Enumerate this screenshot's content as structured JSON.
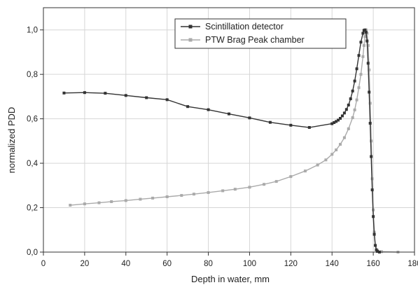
{
  "chart_data": {
    "type": "line",
    "xlabel": "Depth in water, mm",
    "ylabel": "normalized PDD",
    "xlim": [
      0,
      180
    ],
    "ylim": [
      0,
      1.1
    ],
    "x_ticks": [
      0,
      20,
      40,
      60,
      80,
      100,
      120,
      140,
      160,
      180
    ],
    "x_tick_labels": [
      "0",
      "20",
      "40",
      "60",
      "80",
      "100",
      "120",
      "140",
      "160",
      "180"
    ],
    "y_ticks": [
      0,
      0.2,
      0.4,
      0.6,
      0.8,
      1.0
    ],
    "y_tick_labels": [
      "0,0",
      "0,2",
      "0,4",
      "0,6",
      "0,8",
      "1,0"
    ],
    "grid": true,
    "legend_position": "top-center",
    "series": [
      {
        "name": "Scintillation detector",
        "color": "#333333",
        "marker": "square",
        "x": [
          10,
          20,
          30,
          40,
          50,
          60,
          70,
          80,
          90,
          100,
          110,
          120,
          129,
          140,
          141,
          142,
          143,
          144,
          145,
          146,
          147,
          148,
          149,
          150,
          151,
          152,
          153,
          154,
          155,
          155.5,
          156,
          156.5,
          157,
          157.5,
          158,
          158.5,
          159,
          159.5,
          160,
          160.5,
          161,
          161.5,
          162,
          163
        ],
        "y": [
          0.716,
          0.718,
          0.715,
          0.705,
          0.695,
          0.686,
          0.655,
          0.641,
          0.622,
          0.604,
          0.584,
          0.571,
          0.561,
          0.578,
          0.583,
          0.588,
          0.594,
          0.602,
          0.613,
          0.626,
          0.642,
          0.662,
          0.69,
          0.725,
          0.77,
          0.825,
          0.885,
          0.945,
          0.985,
          0.998,
          1.0,
          0.99,
          0.95,
          0.85,
          0.72,
          0.58,
          0.43,
          0.28,
          0.16,
          0.08,
          0.03,
          0.01,
          0.003,
          0.0
        ]
      },
      {
        "name": "PTW Brag Peak chamber",
        "color": "#aaaaaa",
        "marker": "square",
        "x": [
          13,
          20,
          27,
          33,
          40,
          47,
          53,
          60,
          67,
          73,
          80,
          87,
          93,
          100,
          107,
          113,
          120,
          127,
          133,
          137,
          140,
          142,
          144,
          146,
          148,
          150,
          151,
          152,
          153,
          154,
          155,
          155.5,
          156,
          156.5,
          157,
          157.5,
          158,
          158.5,
          159,
          159.5,
          160,
          160.5,
          161,
          162,
          164,
          172
        ],
        "y": [
          0.211,
          0.217,
          0.222,
          0.227,
          0.232,
          0.238,
          0.243,
          0.249,
          0.255,
          0.261,
          0.268,
          0.276,
          0.283,
          0.292,
          0.305,
          0.318,
          0.34,
          0.365,
          0.392,
          0.415,
          0.44,
          0.46,
          0.485,
          0.515,
          0.555,
          0.605,
          0.64,
          0.685,
          0.74,
          0.8,
          0.88,
          0.93,
          0.97,
          1.0,
          0.985,
          0.93,
          0.82,
          0.67,
          0.5,
          0.33,
          0.19,
          0.09,
          0.03,
          0.008,
          0.002,
          0.0
        ]
      }
    ]
  }
}
